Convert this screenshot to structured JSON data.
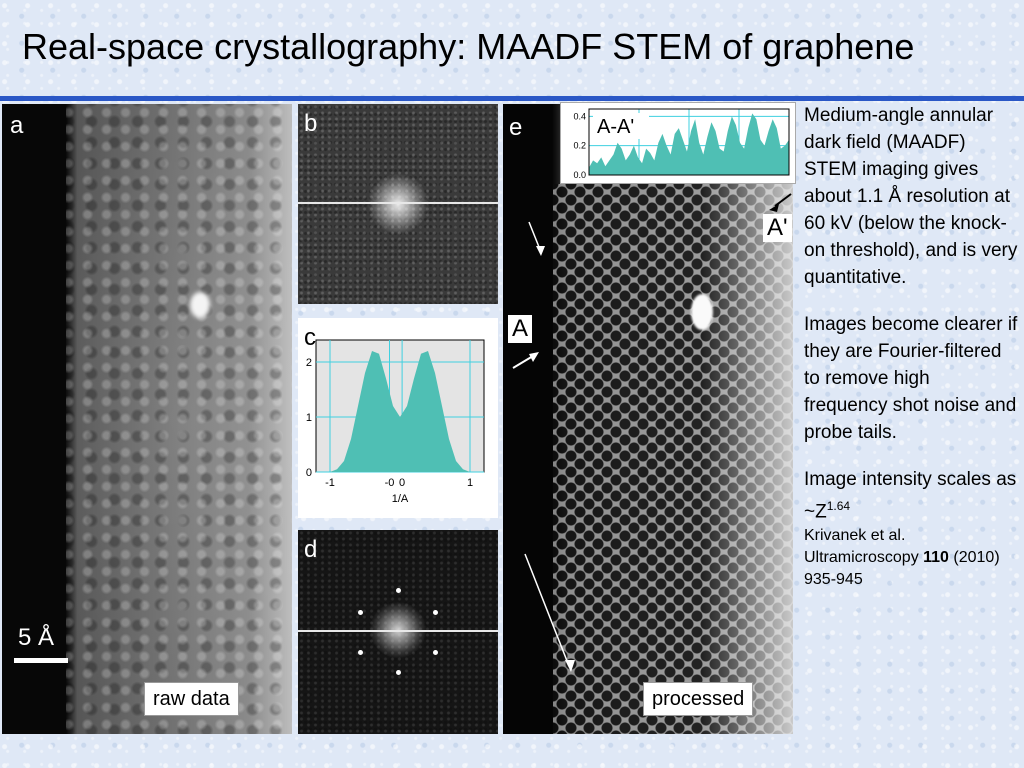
{
  "slide": {
    "title": "Real-space crystallography: MAADF STEM of graphene",
    "accent_color": "#2a57c6",
    "background_color": "#dfe8f6"
  },
  "panels": {
    "a": {
      "letter": "a",
      "scale_label": "5 Å",
      "caption": "raw data"
    },
    "b": {
      "letter": "b"
    },
    "c": {
      "letter": "c",
      "xlabel": "1/A"
    },
    "d": {
      "letter": "d"
    },
    "e": {
      "letter": "e",
      "caption": "processed",
      "marker_a": "A",
      "marker_a_prime": "A'"
    },
    "profile": {
      "label": "A-A'"
    }
  },
  "chart_data": [
    {
      "type": "area",
      "panel": "c",
      "x": [
        -1.0,
        -0.9,
        -0.8,
        -0.7,
        -0.6,
        -0.5,
        -0.4,
        -0.3,
        -0.2,
        -0.1,
        0.0,
        0.1,
        0.2,
        0.3,
        0.4,
        0.5,
        0.6,
        0.7,
        0.8,
        0.9,
        1.0
      ],
      "y": [
        0.0,
        0.05,
        0.2,
        0.6,
        1.2,
        1.8,
        2.2,
        2.15,
        1.7,
        1.2,
        1.0,
        1.2,
        1.7,
        2.15,
        2.2,
        1.8,
        1.2,
        0.6,
        0.2,
        0.05,
        0.0
      ],
      "xlabel": "1/A",
      "ylabel": "",
      "xlim": [
        -1.2,
        1.2
      ],
      "ylim": [
        0,
        2.4
      ],
      "xticks": [
        "-1",
        "-0",
        "0",
        "1"
      ],
      "xtick_values": [
        -1,
        -0.15,
        0.03,
        1
      ],
      "yticks": [
        "0",
        "1",
        "2"
      ],
      "ytick_values": [
        0,
        1,
        2
      ],
      "grid": true,
      "fill_color": "#4fbfb4",
      "plot_background": "#e4e4e4",
      "grid_color": "#3fd0e0"
    },
    {
      "type": "area",
      "panel": "profile",
      "title": "A-A'",
      "x": [
        0,
        1,
        2,
        3,
        4,
        5,
        6,
        7,
        8,
        9,
        10,
        11,
        12,
        13,
        14,
        15,
        16,
        17,
        18,
        19,
        20,
        21,
        22,
        23,
        24,
        25,
        26,
        27,
        28,
        29,
        30,
        31,
        32,
        33,
        34,
        35,
        36,
        37,
        38,
        39,
        40,
        41,
        42,
        43,
        44,
        45,
        46,
        47,
        48,
        49
      ],
      "y": [
        0.05,
        0.1,
        0.08,
        0.12,
        0.06,
        0.1,
        0.14,
        0.22,
        0.18,
        0.1,
        0.14,
        0.2,
        0.12,
        0.08,
        0.18,
        0.15,
        0.1,
        0.22,
        0.28,
        0.2,
        0.14,
        0.28,
        0.32,
        0.24,
        0.16,
        0.3,
        0.38,
        0.22,
        0.14,
        0.26,
        0.36,
        0.3,
        0.18,
        0.16,
        0.3,
        0.4,
        0.34,
        0.22,
        0.18,
        0.32,
        0.42,
        0.38,
        0.24,
        0.2,
        0.3,
        0.38,
        0.32,
        0.18,
        0.2,
        0.24
      ],
      "ylim": [
        0.0,
        0.45
      ],
      "yticks": [
        "0.0",
        "0.2",
        "0.4"
      ],
      "ytick_values": [
        0.0,
        0.2,
        0.4
      ],
      "grid": true,
      "fill_color": "#4fbfb4",
      "grid_color": "#3fd0e0"
    }
  ],
  "sidebar": {
    "p1": "Medium-angle annular dark field (MAADF) STEM imaging gives about 1.1 Å resolution at 60 kV (below the knock-on threshold), and is very quantitative.",
    "p2": "Images become clearer if they are Fourier-filtered to remove high frequency shot noise and probe tails.",
    "p3_text": "Image intensity scales as ~Z",
    "p3_exp": "1.64",
    "cite_authors": "Krivanek et al. Ultramicroscopy",
    "cite_volume": "110",
    "cite_pages": "(2010) 935-945"
  }
}
